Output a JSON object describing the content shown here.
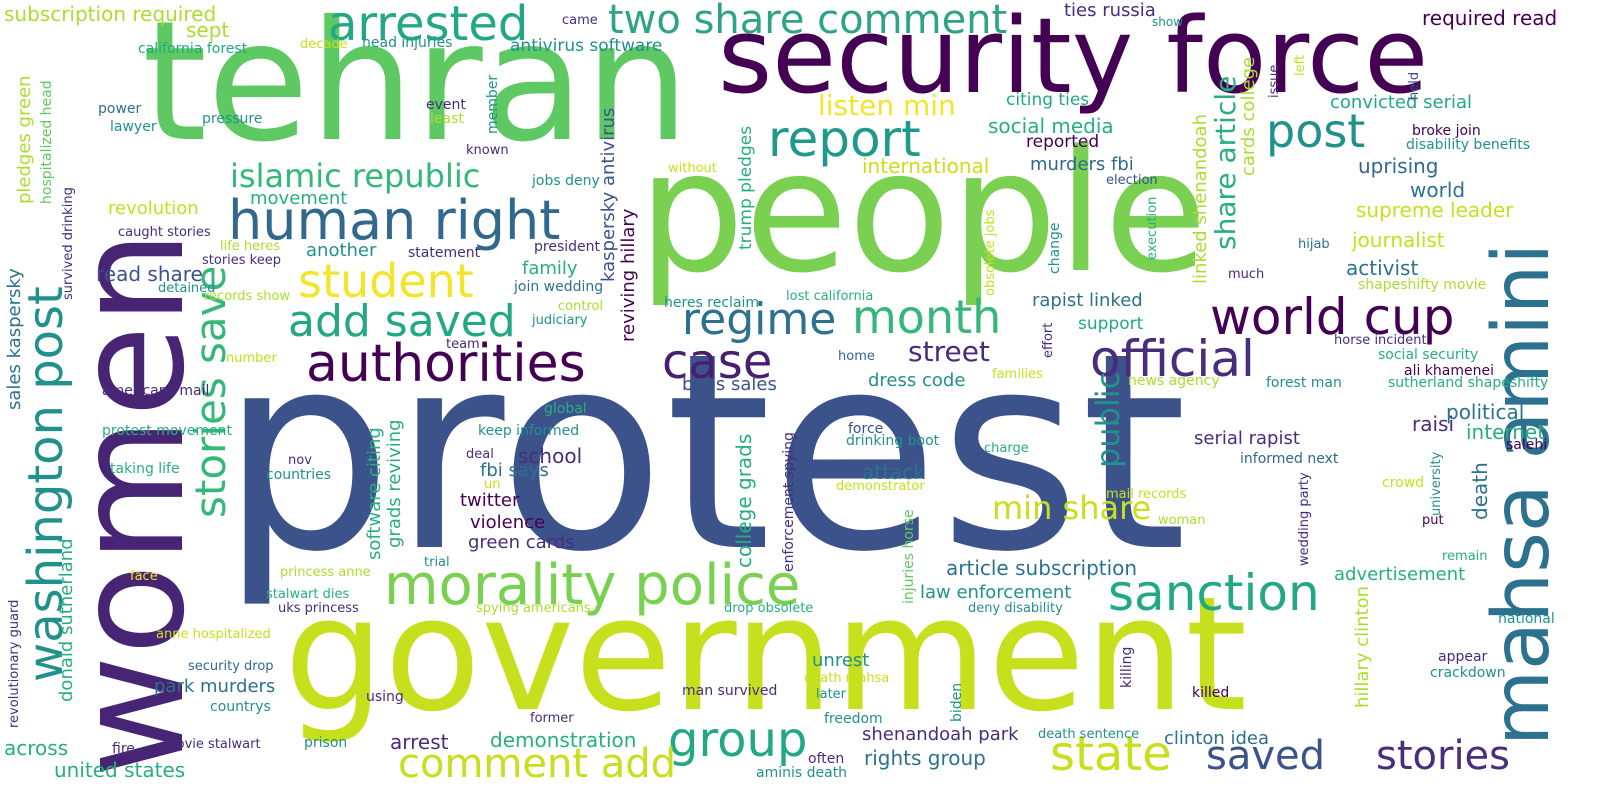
{
  "palette": {
    "p1": "#440154",
    "p2": "#472d7b",
    "p3": "#3b528b",
    "p4": "#2c728e",
    "p5": "#21918c",
    "p6": "#28ae80",
    "p7": "#5ec962",
    "p8": "#addc30",
    "p9": "#c6e01e",
    "p10": "#f2e52a"
  },
  "words": [
    {
      "text": "protest"
    },
    {
      "text": "people"
    },
    {
      "text": "government"
    },
    {
      "text": "tehran"
    },
    {
      "text": "women"
    },
    {
      "text": "security force"
    },
    {
      "text": "mahsa amini"
    },
    {
      "text": "morality police"
    },
    {
      "text": "human right"
    },
    {
      "text": "washington post"
    },
    {
      "text": "authorities"
    },
    {
      "text": "case"
    },
    {
      "text": "arrested"
    },
    {
      "text": "two share comment"
    },
    {
      "text": "report"
    },
    {
      "text": "post"
    },
    {
      "text": "student"
    },
    {
      "text": "islamic republic"
    },
    {
      "text": "add saved"
    },
    {
      "text": "regime"
    },
    {
      "text": "month"
    },
    {
      "text": "world cup"
    },
    {
      "text": "official"
    },
    {
      "text": "stories save"
    },
    {
      "text": "sanction"
    },
    {
      "text": "group"
    },
    {
      "text": "state"
    },
    {
      "text": "saved"
    },
    {
      "text": "stories"
    },
    {
      "text": "comment add"
    },
    {
      "text": "min share"
    },
    {
      "text": "street"
    },
    {
      "text": "listen min"
    },
    {
      "text": "public"
    },
    {
      "text": "subscription required"
    },
    {
      "text": "sept"
    },
    {
      "text": "california forest"
    },
    {
      "text": "decade"
    },
    {
      "text": "head injuries"
    },
    {
      "text": "antivirus software"
    },
    {
      "text": "came"
    },
    {
      "text": "ties russia"
    },
    {
      "text": "show"
    },
    {
      "text": "required read"
    },
    {
      "text": "convicted serial"
    },
    {
      "text": "citing ties"
    },
    {
      "text": "social media"
    },
    {
      "text": "reported"
    },
    {
      "text": "murders fbi"
    },
    {
      "text": "international"
    },
    {
      "text": "uprising"
    },
    {
      "text": "world"
    },
    {
      "text": "supreme leader"
    },
    {
      "text": "journalist"
    },
    {
      "text": "activist"
    },
    {
      "text": "shapeshifty movie"
    },
    {
      "text": "broke join"
    },
    {
      "text": "disability benefits"
    },
    {
      "text": "horse incident"
    },
    {
      "text": "social security"
    },
    {
      "text": "ali khamenei"
    },
    {
      "text": "sutherland shapeshifty"
    },
    {
      "text": "news agency"
    },
    {
      "text": "forest man"
    },
    {
      "text": "political"
    },
    {
      "text": "internet"
    },
    {
      "text": "raisi"
    },
    {
      "text": "salehi"
    },
    {
      "text": "serial rapist"
    },
    {
      "text": "informed next"
    },
    {
      "text": "crowd"
    },
    {
      "text": "mail records"
    },
    {
      "text": "woman"
    },
    {
      "text": "put"
    },
    {
      "text": "advertisement"
    },
    {
      "text": "remain"
    },
    {
      "text": "national"
    },
    {
      "text": "appear"
    },
    {
      "text": "crackdown"
    },
    {
      "text": "killed"
    },
    {
      "text": "hijab"
    },
    {
      "text": "much"
    },
    {
      "text": "election"
    },
    {
      "text": "power"
    },
    {
      "text": "lawyer"
    },
    {
      "text": "event"
    },
    {
      "text": "least"
    },
    {
      "text": "pressure"
    },
    {
      "text": "known"
    },
    {
      "text": "without"
    },
    {
      "text": "jobs deny"
    },
    {
      "text": "movement"
    },
    {
      "text": "revolution"
    },
    {
      "text": "caught stories"
    },
    {
      "text": "life heres"
    },
    {
      "text": "stories keep"
    },
    {
      "text": "statement"
    },
    {
      "text": "president"
    },
    {
      "text": "another"
    },
    {
      "text": "read share"
    },
    {
      "text": "family"
    },
    {
      "text": "join wedding"
    },
    {
      "text": "detained"
    },
    {
      "text": "records show"
    },
    {
      "text": "control"
    },
    {
      "text": "judiciary"
    },
    {
      "text": "heres reclaim"
    },
    {
      "text": "lost california"
    },
    {
      "text": "rapist linked"
    },
    {
      "text": "support"
    },
    {
      "text": "team"
    },
    {
      "text": "home"
    },
    {
      "text": "number"
    },
    {
      "text": "americans mail"
    },
    {
      "text": "global"
    },
    {
      "text": "bans sales"
    },
    {
      "text": "dress code"
    },
    {
      "text": "families"
    },
    {
      "text": "protest movement"
    },
    {
      "text": "keep informed"
    },
    {
      "text": "force"
    },
    {
      "text": "drinking boot"
    },
    {
      "text": "charge"
    },
    {
      "text": "school"
    },
    {
      "text": "fbi says"
    },
    {
      "text": "deal"
    },
    {
      "text": "un"
    },
    {
      "text": "attack"
    },
    {
      "text": "demonstrator"
    },
    {
      "text": "nov"
    },
    {
      "text": "countries"
    },
    {
      "text": "taking life"
    },
    {
      "text": "twitter"
    },
    {
      "text": "violence"
    },
    {
      "text": "green cards"
    },
    {
      "text": "article subscription"
    },
    {
      "text": "law enforcement"
    },
    {
      "text": "deny disability"
    },
    {
      "text": "face"
    },
    {
      "text": "trial"
    },
    {
      "text": "princess anne"
    },
    {
      "text": "stalwart dies"
    },
    {
      "text": "uks princess"
    },
    {
      "text": "spying americans"
    },
    {
      "text": "drop obsolete"
    },
    {
      "text": "anne hospitalized"
    },
    {
      "text": "unrest"
    },
    {
      "text": "death mahsa"
    },
    {
      "text": "park murders"
    },
    {
      "text": "man survived"
    },
    {
      "text": "security drop"
    },
    {
      "text": "using"
    },
    {
      "text": "countrys"
    },
    {
      "text": "later"
    },
    {
      "text": "former"
    },
    {
      "text": "freedom"
    },
    {
      "text": "shenandoah park"
    },
    {
      "text": "death sentence"
    },
    {
      "text": "rights group"
    },
    {
      "text": "clinton idea"
    },
    {
      "text": "arrest"
    },
    {
      "text": "demonstration"
    },
    {
      "text": "across"
    },
    {
      "text": "fire"
    },
    {
      "text": "movie stalwart"
    },
    {
      "text": "prison"
    },
    {
      "text": "often"
    },
    {
      "text": "united states"
    },
    {
      "text": "aminis death"
    },
    {
      "text": "pledges green"
    },
    {
      "text": "hospitalized head"
    },
    {
      "text": "survived drinking"
    },
    {
      "text": "sales kaspersky"
    },
    {
      "text": "donald sutherland"
    },
    {
      "text": "revolutionary guard"
    },
    {
      "text": "member"
    },
    {
      "text": "kaspersky antivirus"
    },
    {
      "text": "reviving hillary"
    },
    {
      "text": "trump pledges"
    },
    {
      "text": "software citing"
    },
    {
      "text": "grads reviving"
    },
    {
      "text": "college grads"
    },
    {
      "text": "enforcement spying"
    },
    {
      "text": "injuries horse"
    },
    {
      "text": "killing"
    },
    {
      "text": "biden"
    },
    {
      "text": "change"
    },
    {
      "text": "effort"
    },
    {
      "text": "obsolete jobs"
    },
    {
      "text": "execution"
    },
    {
      "text": "linked shenandoah"
    },
    {
      "text": "cards college"
    },
    {
      "text": "share article"
    },
    {
      "text": "left"
    },
    {
      "text": "issue"
    },
    {
      "text": "held"
    },
    {
      "text": "death"
    },
    {
      "text": "university"
    },
    {
      "text": "wedding party"
    },
    {
      "text": "hillary clinton"
    }
  ]
}
